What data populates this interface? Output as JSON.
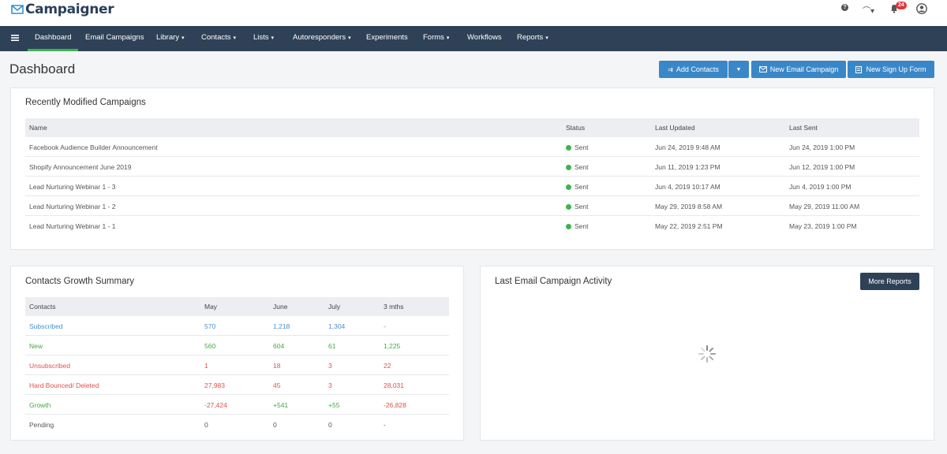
{
  "app": {
    "logo_text": "Campaigner"
  },
  "topbar": {
    "notifications_count": "24",
    "help_glyph": "?",
    "support_glyph": "⌒▾"
  },
  "nav": {
    "items": [
      {
        "label": "Dashboard",
        "dropdown": false,
        "active": true
      },
      {
        "label": "Email Campaigns",
        "dropdown": false
      },
      {
        "label": "Library",
        "dropdown": true
      },
      {
        "label": "Contacts",
        "dropdown": true
      },
      {
        "label": "Lists",
        "dropdown": true
      },
      {
        "label": "Autoresponders",
        "dropdown": true
      },
      {
        "label": "Experiments",
        "dropdown": false
      },
      {
        "label": "Forms",
        "dropdown": true
      },
      {
        "label": "Workflows",
        "dropdown": false
      },
      {
        "label": "Reports",
        "dropdown": true
      }
    ]
  },
  "page": {
    "title": "Dashboard",
    "buttons": {
      "add_contacts": "Add Contacts",
      "new_email_campaign": "New Email Campaign",
      "new_signup_form": "New Sign Up Form"
    }
  },
  "recent_campaigns": {
    "title": "Recently Modified Campaigns",
    "columns": [
      "Name",
      "Status",
      "Last Updated",
      "Last Sent"
    ],
    "rows": [
      {
        "name": "Facebook Audience Builder Announcement",
        "status": "Sent",
        "updated": "Jun 24, 2019 9:48 AM",
        "sent": "Jun 24, 2019 1:00 PM"
      },
      {
        "name": "Shopify Announcement June 2019",
        "status": "Sent",
        "updated": "Jun 11, 2019 1:23 PM",
        "sent": "Jun 12, 2019 1:00 PM"
      },
      {
        "name": "Lead Nurturing Webinar 1 - 3",
        "status": "Sent",
        "updated": "Jun 4, 2019 10:17 AM",
        "sent": "Jun 4, 2019 1:00 PM"
      },
      {
        "name": "Lead Nurturing Webinar 1 - 2",
        "status": "Sent",
        "updated": "May 29, 2019 8:58 AM",
        "sent": "May 29, 2019 11:00 AM"
      },
      {
        "name": "Lead Nurturing Webinar 1 - 1",
        "status": "Sent",
        "updated": "May 22, 2019 2:51 PM",
        "sent": "May 23, 2019 1:00 PM"
      }
    ]
  },
  "growth": {
    "title": "Contacts Growth Summary",
    "columns": [
      "Contacts",
      "May",
      "June",
      "July",
      "3 mths"
    ],
    "rows": [
      {
        "label": "Subscribed",
        "values": [
          "570",
          "1,218",
          "1,304",
          "-"
        ],
        "color": "#4a8fd0"
      },
      {
        "label": "New",
        "values": [
          "560",
          "604",
          "61",
          "1,225"
        ],
        "color": "#45a84a"
      },
      {
        "label": "Unsubscribed",
        "values": [
          "1",
          "18",
          "3",
          "22"
        ],
        "color": "#e0504b"
      },
      {
        "label": "Hard Bounced/ Deleted",
        "values": [
          "27,983",
          "45",
          "3",
          "28,031"
        ],
        "color": "#e0504b"
      },
      {
        "label": "Growth",
        "values": [
          "-27,424",
          "+541",
          "+55",
          "-26,828"
        ],
        "color": "#45a84a",
        "mixed": true
      },
      {
        "label": "Pending",
        "values": [
          "0",
          "0",
          "0",
          "-"
        ],
        "color": "#555555"
      }
    ]
  },
  "activity": {
    "title": "Last Email Campaign Activity",
    "more_reports": "More Reports"
  },
  "colors": {
    "nav_bg": "#2e4157",
    "accent_blue": "#3a87c8",
    "active_underline": "#3fb34f",
    "status_sent": "#3fb34f"
  }
}
